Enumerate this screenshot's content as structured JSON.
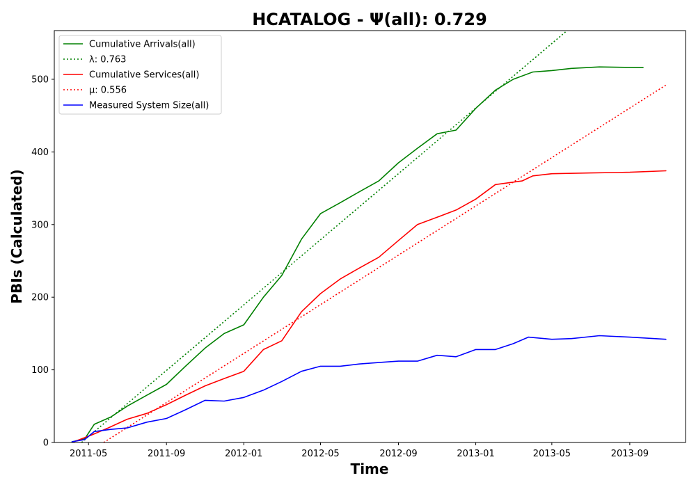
{
  "chart_data": {
    "type": "line",
    "title": "HCATALOG -  Ψ(all): 0.729",
    "xlabel": "Time",
    "ylabel": "PBIs (Calculated)",
    "x_tick_labels": [
      "2011-05",
      "2011-09",
      "2012-01",
      "2012-05",
      "2012-09",
      "2013-01",
      "2013-05",
      "2013-09"
    ],
    "x_ticks": [
      "2011-05-01",
      "2011-09-01",
      "2012-01-01",
      "2012-05-01",
      "2012-09-01",
      "2013-01-01",
      "2013-05-01",
      "2013-09-01"
    ],
    "xlim": [
      "2011-03-08",
      "2013-11-28"
    ],
    "y_ticks": [
      0,
      100,
      200,
      300,
      400,
      500
    ],
    "ylim": [
      0,
      567
    ],
    "grid": false,
    "legend_position": "upper-left",
    "series": [
      {
        "name": "Cumulative Arrivals(all)",
        "color": "#008000",
        "style": "solid",
        "x": [
          "2011-04-05",
          "2011-04-25",
          "2011-05-10",
          "2011-06-05",
          "2011-07-01",
          "2011-08-01",
          "2011-09-01",
          "2011-10-01",
          "2011-11-01",
          "2011-12-01",
          "2012-01-01",
          "2012-02-01",
          "2012-03-01",
          "2012-04-01",
          "2012-05-01",
          "2012-06-01",
          "2012-07-01",
          "2012-08-01",
          "2012-09-01",
          "2012-10-01",
          "2012-11-01",
          "2012-12-01",
          "2013-01-01",
          "2013-02-01",
          "2013-03-01",
          "2013-04-01",
          "2013-05-01",
          "2013-06-01",
          "2013-07-15",
          "2013-09-22"
        ],
        "y": [
          1,
          5,
          25,
          35,
          50,
          65,
          80,
          105,
          130,
          150,
          162,
          200,
          230,
          280,
          315,
          330,
          345,
          360,
          385,
          405,
          425,
          430,
          460,
          485,
          500,
          510,
          512,
          515,
          517,
          516
        ]
      },
      {
        "name": "λ: 0.763",
        "color": "#008000",
        "style": "dotted",
        "x": [
          "2011-04-20",
          "2013-05-25"
        ],
        "y": [
          0,
          567
        ]
      },
      {
        "name": "Cumulative Services(all)",
        "color": "#ff0000",
        "style": "solid",
        "x": [
          "2011-04-05",
          "2011-05-05",
          "2011-06-01",
          "2011-07-01",
          "2011-08-01",
          "2011-09-01",
          "2011-10-01",
          "2011-11-01",
          "2011-12-01",
          "2012-01-01",
          "2012-02-01",
          "2012-03-01",
          "2012-04-01",
          "2012-05-01",
          "2012-06-01",
          "2012-07-01",
          "2012-08-01",
          "2012-09-01",
          "2012-10-01",
          "2012-11-01",
          "2012-12-01",
          "2013-01-01",
          "2013-02-01",
          "2013-03-15",
          "2013-04-01",
          "2013-05-01",
          "2013-07-01",
          "2013-09-01",
          "2013-10-28"
        ],
        "y": [
          0,
          10,
          20,
          32,
          40,
          52,
          65,
          78,
          88,
          98,
          128,
          140,
          180,
          205,
          225,
          240,
          255,
          278,
          300,
          310,
          320,
          335,
          355,
          360,
          367,
          370,
          371,
          372,
          374
        ]
      },
      {
        "name": "μ: 0.556",
        "color": "#ff0000",
        "style": "dotted",
        "x": [
          "2011-05-25",
          "2013-10-28"
        ],
        "y": [
          0,
          492
        ]
      },
      {
        "name": "Measured System Size(all)",
        "color": "#0000ff",
        "style": "solid",
        "x": [
          "2011-04-05",
          "2011-04-25",
          "2011-05-10",
          "2011-06-05",
          "2011-07-01",
          "2011-08-01",
          "2011-09-01",
          "2011-10-01",
          "2011-11-01",
          "2011-12-01",
          "2012-01-01",
          "2012-02-01",
          "2012-03-01",
          "2012-04-01",
          "2012-05-01",
          "2012-06-01",
          "2012-07-01",
          "2012-08-01",
          "2012-09-01",
          "2012-10-01",
          "2012-11-01",
          "2012-12-01",
          "2013-01-01",
          "2013-02-01",
          "2013-03-01",
          "2013-03-25",
          "2013-05-01",
          "2013-06-01",
          "2013-07-15",
          "2013-09-01",
          "2013-10-28"
        ],
        "y": [
          1,
          4,
          15,
          18,
          20,
          28,
          33,
          45,
          58,
          57,
          62,
          72,
          84,
          98,
          105,
          105,
          108,
          110,
          112,
          112,
          120,
          118,
          128,
          128,
          136,
          145,
          142,
          143,
          147,
          145,
          142
        ]
      }
    ]
  }
}
